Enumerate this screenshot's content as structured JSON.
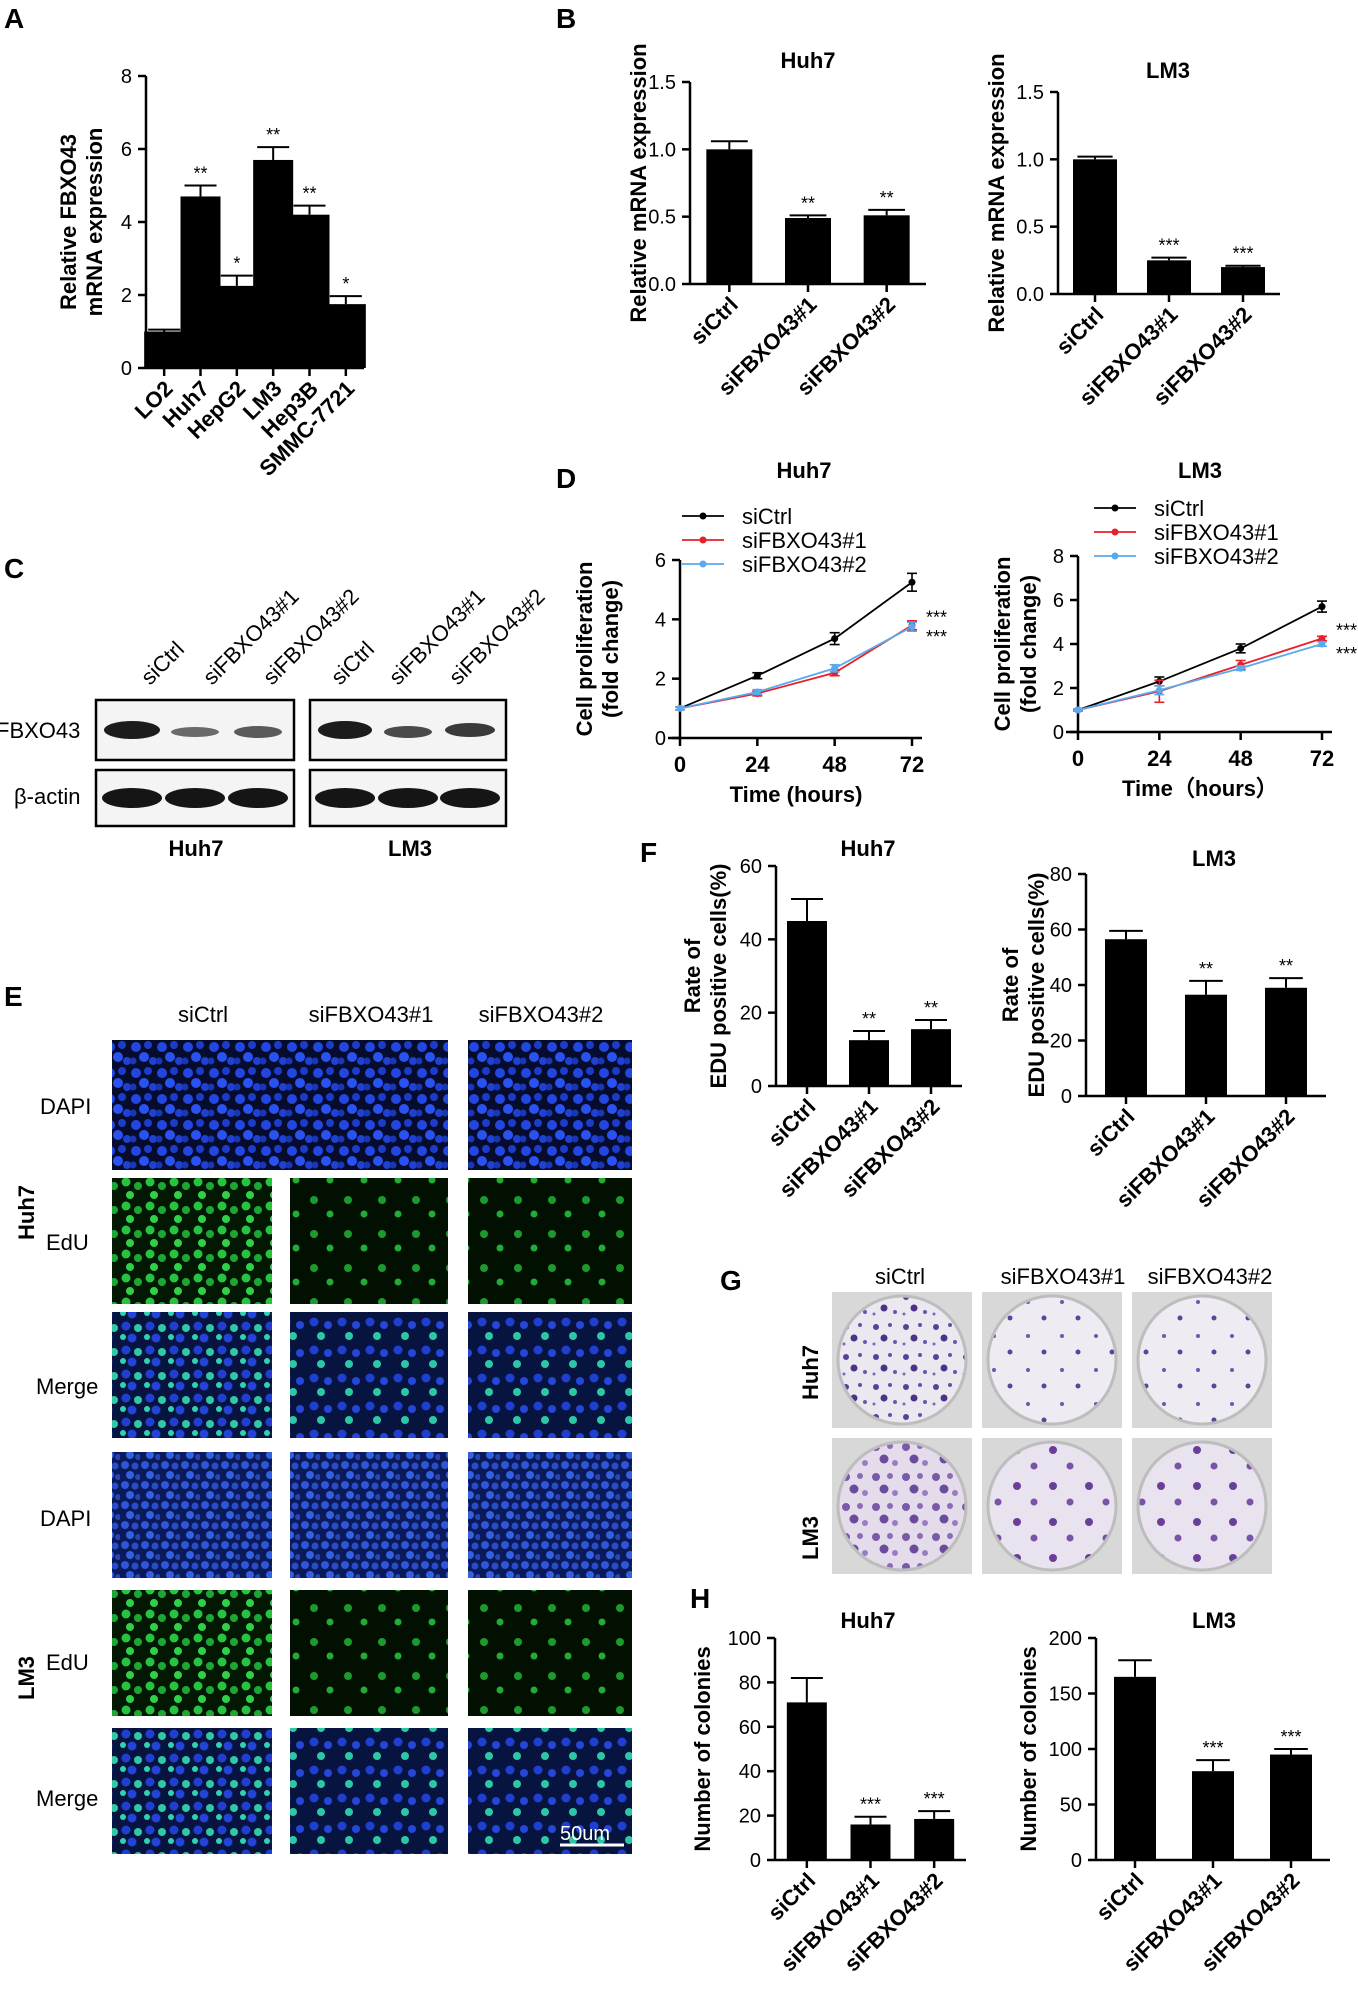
{
  "panel_letters": [
    "A",
    "B",
    "C",
    "D",
    "E",
    "F",
    "G",
    "H"
  ],
  "blot": {
    "lanes": [
      "siCtrl",
      "siFBXO43#1",
      "siFBXO43#2",
      "siCtrl",
      "siFBXO43#1",
      "siFBXO43#2"
    ],
    "rows": [
      "FBXO43",
      "β-actin"
    ],
    "groups": [
      "Huh7",
      "LM3"
    ]
  },
  "microscopy": {
    "columns": [
      "siCtrl",
      "siFBXO43#1",
      "siFBXO43#2"
    ],
    "row_labels": [
      "DAPI",
      "EdU",
      "Merge",
      "DAPI",
      "EdU",
      "Merge"
    ],
    "groups": [
      "Huh7",
      "LM3"
    ],
    "scale_bar": "50um",
    "colors": {
      "dapi": "#1b3fd6",
      "edu": "#1fb53a",
      "merge": "#1a33b8"
    }
  },
  "colony": {
    "columns": [
      "siCtrl",
      "siFBXO43#1",
      "siFBXO43#2"
    ],
    "rows": [
      "Huh7",
      "LM3"
    ],
    "colors": {
      "dish": "#ece9f0",
      "colony": "#5b3f98"
    }
  },
  "chart_data": [
    {
      "panel": "A",
      "type": "bar",
      "title": "",
      "ylabel_lines": [
        "Relative FBXO43",
        "mRNA expression"
      ],
      "categories": [
        "LO2",
        "Huh7",
        "HepG2",
        "LM3",
        "Hep3B",
        "SMMC-7721"
      ],
      "values": [
        1.0,
        4.7,
        2.25,
        5.7,
        4.2,
        1.75
      ],
      "errors": [
        0.05,
        0.3,
        0.28,
        0.35,
        0.25,
        0.22
      ],
      "sig": [
        "",
        "**",
        "*",
        "**",
        "**",
        "*"
      ],
      "ylim": [
        0,
        8
      ],
      "yticks": [
        0,
        2,
        4,
        6,
        8
      ],
      "ytick_labels": [
        "0",
        "2",
        "4",
        "6",
        "8"
      ]
    },
    {
      "panel": "B1",
      "type": "bar",
      "title": "Huh7",
      "ylabel_lines": [
        "Relative mRNA expression"
      ],
      "categories": [
        "siCtrl",
        "siFBXO43#1",
        "siFBXO43#2"
      ],
      "values": [
        1.0,
        0.49,
        0.51
      ],
      "errors": [
        0.06,
        0.02,
        0.04
      ],
      "sig": [
        "",
        "**",
        "**"
      ],
      "ylim": [
        0,
        1.5
      ],
      "yticks": [
        0,
        0.5,
        1.0,
        1.5
      ],
      "ytick_labels": [
        "0.0",
        "0.5",
        "1.0",
        "1.5"
      ]
    },
    {
      "panel": "B2",
      "type": "bar",
      "title": "LM3",
      "ylabel_lines": [
        "Relative mRNA expression"
      ],
      "categories": [
        "siCtrl",
        "siFBXO43#1",
        "siFBXO43#2"
      ],
      "values": [
        1.0,
        0.25,
        0.2
      ],
      "errors": [
        0.02,
        0.02,
        0.01
      ],
      "sig": [
        "",
        "***",
        "***"
      ],
      "ylim": [
        0,
        1.5
      ],
      "yticks": [
        0,
        0.5,
        1.0,
        1.5
      ],
      "ytick_labels": [
        "0.0",
        "0.5",
        "1.0",
        "1.5"
      ]
    },
    {
      "panel": "D1",
      "type": "line",
      "title": "Huh7",
      "ylabel_lines": [
        "Cell proliferation",
        "(fold change)"
      ],
      "xlabel": "Time (hours)",
      "x": [
        0,
        24,
        48,
        72
      ],
      "xtick_labels": [
        "0",
        "24",
        "48",
        "72"
      ],
      "series": [
        {
          "name": "siCtrl",
          "color": "#000000",
          "values": [
            1.0,
            2.1,
            3.35,
            5.25
          ],
          "errors": [
            0.05,
            0.1,
            0.2,
            0.3
          ]
        },
        {
          "name": "siFBXO43#1",
          "color": "#e8202a",
          "values": [
            1.0,
            1.5,
            2.2,
            3.8
          ],
          "errors": [
            0.05,
            0.08,
            0.1,
            0.15
          ]
        },
        {
          "name": "siFBXO43#2",
          "color": "#5aa8ee",
          "values": [
            1.0,
            1.55,
            2.35,
            3.75
          ],
          "errors": [
            0.05,
            0.08,
            0.12,
            0.15
          ]
        }
      ],
      "sig": [
        "***",
        "***"
      ],
      "xlim": [
        0,
        72
      ],
      "ylim": [
        0,
        6
      ],
      "yticks": [
        0,
        2,
        4,
        6
      ],
      "ytick_labels": [
        "0",
        "2",
        "4",
        "6"
      ]
    },
    {
      "panel": "D2",
      "type": "line",
      "title": "LM3",
      "ylabel_lines": [
        "Cell proliferation",
        "(fold change)"
      ],
      "xlabel": "Time（hours）",
      "x": [
        0,
        24,
        48,
        72
      ],
      "xtick_labels": [
        "0",
        "24",
        "48",
        "72"
      ],
      "series": [
        {
          "name": "siCtrl",
          "color": "#000000",
          "values": [
            1.0,
            2.3,
            3.8,
            5.7
          ],
          "errors": [
            0.05,
            0.2,
            0.2,
            0.25
          ]
        },
        {
          "name": "siFBXO43#1",
          "color": "#e8202a",
          "values": [
            1.0,
            1.85,
            3.05,
            4.25
          ],
          "errors": [
            0.05,
            0.5,
            0.2,
            0.1
          ]
        },
        {
          "name": "siFBXO43#2",
          "color": "#5aa8ee",
          "values": [
            1.0,
            1.9,
            2.9,
            4.0
          ],
          "errors": [
            0.05,
            0.2,
            0.1,
            0.1
          ]
        }
      ],
      "sig": [
        "***",
        "***"
      ],
      "xlim": [
        0,
        72
      ],
      "ylim": [
        0,
        8
      ],
      "yticks": [
        0,
        2,
        4,
        6,
        8
      ],
      "ytick_labels": [
        "0",
        "2",
        "4",
        "6",
        "8"
      ]
    },
    {
      "panel": "F1",
      "type": "bar",
      "title": "Huh7",
      "ylabel_lines": [
        "Rate of",
        "EDU positive cells(%)"
      ],
      "categories": [
        "siCtrl",
        "siFBXO43#1",
        "siFBXO43#2"
      ],
      "values": [
        45,
        12.5,
        15.5
      ],
      "errors": [
        6,
        2.5,
        2.5
      ],
      "sig": [
        "",
        "**",
        "**"
      ],
      "ylim": [
        0,
        60
      ],
      "yticks": [
        0,
        20,
        40,
        60
      ],
      "ytick_labels": [
        "0",
        "20",
        "40",
        "60"
      ]
    },
    {
      "panel": "F2",
      "type": "bar",
      "title": "LM3",
      "ylabel_lines": [
        "Rate of",
        "EDU positive cells(%)"
      ],
      "categories": [
        "siCtrl",
        "siFBXO43#1",
        "siFBXO43#2"
      ],
      "values": [
        56.5,
        36.5,
        39
      ],
      "errors": [
        3,
        5,
        3.5
      ],
      "sig": [
        "",
        "**",
        "**"
      ],
      "ylim": [
        0,
        80
      ],
      "yticks": [
        0,
        20,
        40,
        60,
        80
      ],
      "ytick_labels": [
        "0",
        "20",
        "40",
        "60",
        "80"
      ]
    },
    {
      "panel": "H1",
      "type": "bar",
      "title": "Huh7",
      "ylabel_lines": [
        "Number of colonies"
      ],
      "categories": [
        "siCtrl",
        "siFBXO43#1",
        "siFBXO43#2"
      ],
      "values": [
        71,
        16,
        18.5
      ],
      "errors": [
        11,
        3.5,
        3.5
      ],
      "sig": [
        "",
        "***",
        "***"
      ],
      "ylim": [
        0,
        100
      ],
      "yticks": [
        0,
        20,
        40,
        60,
        80,
        100
      ],
      "ytick_labels": [
        "0",
        "20",
        "40",
        "60",
        "80",
        "100"
      ]
    },
    {
      "panel": "H2",
      "type": "bar",
      "title": "LM3",
      "ylabel_lines": [
        "Number of colonies"
      ],
      "categories": [
        "siCtrl",
        "siFBXO43#1",
        "siFBXO43#2"
      ],
      "values": [
        165,
        80,
        95
      ],
      "errors": [
        15,
        10,
        5
      ],
      "sig": [
        "",
        "***",
        "***"
      ],
      "ylim": [
        0,
        200
      ],
      "yticks": [
        0,
        50,
        100,
        150,
        200
      ],
      "ytick_labels": [
        "0",
        "50",
        "100",
        "150",
        "200"
      ]
    }
  ]
}
